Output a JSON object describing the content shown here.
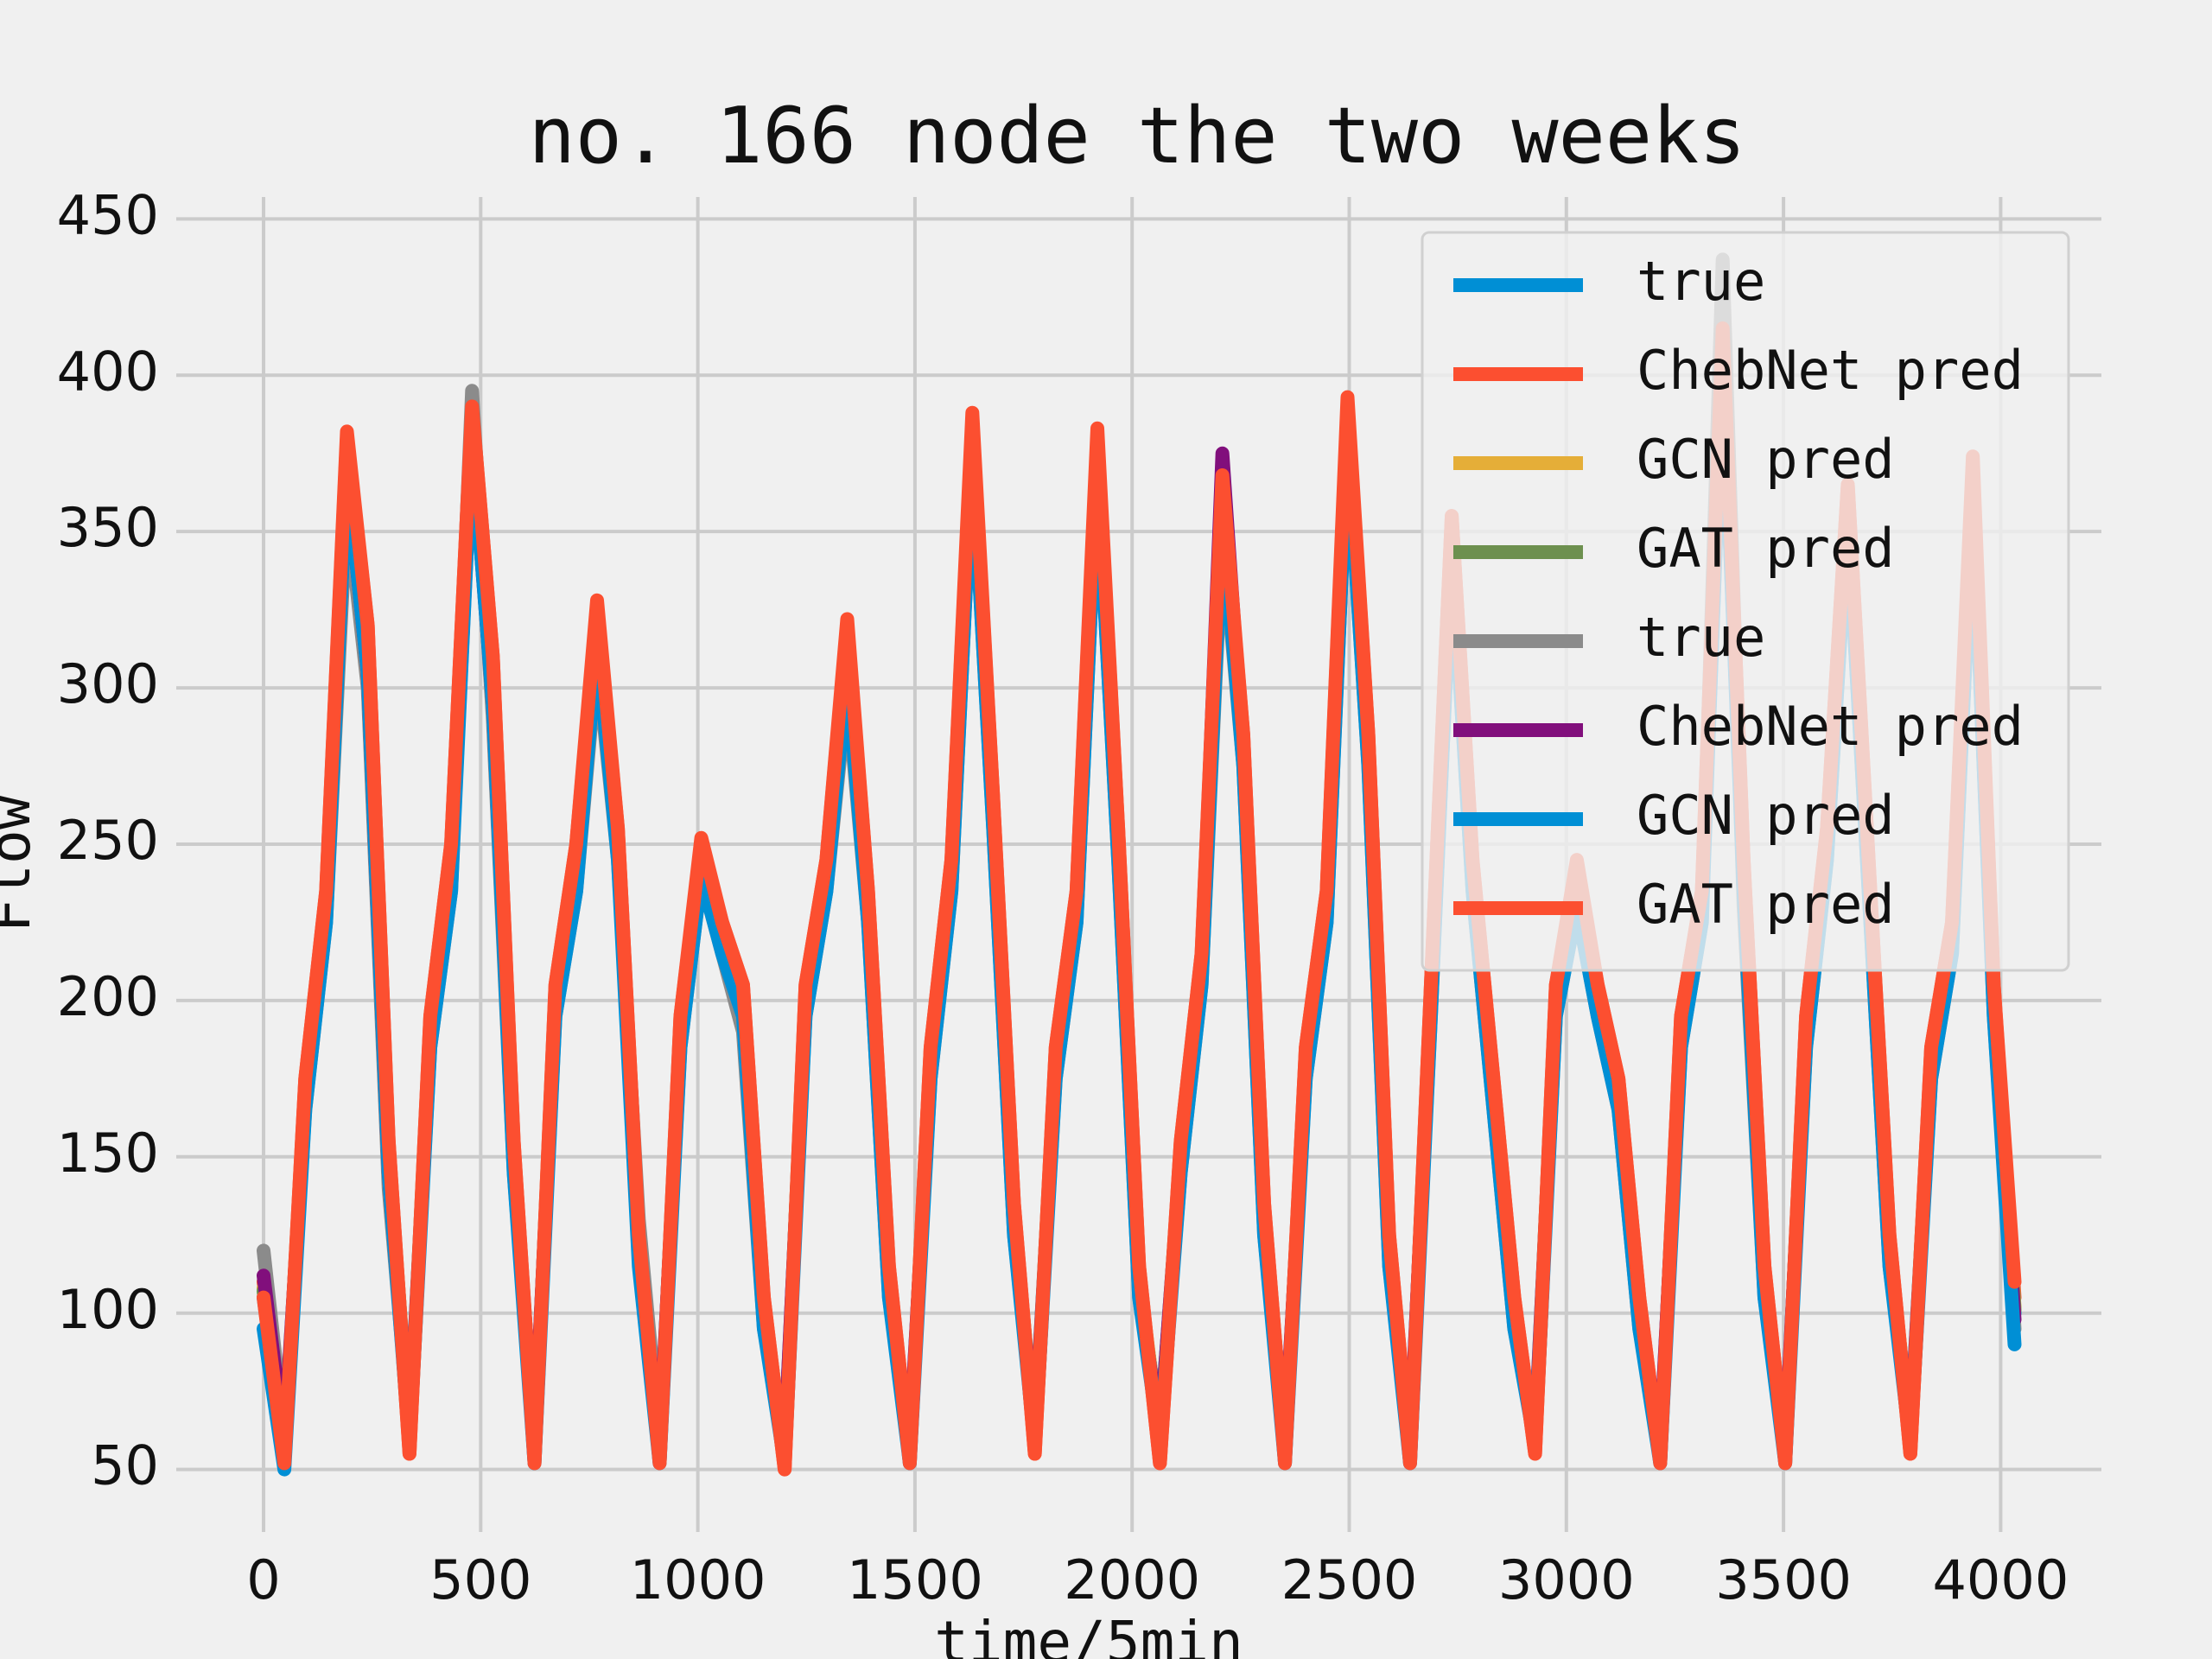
{
  "chart_data": {
    "type": "line",
    "title": "no. 166 node the two weeks",
    "xlabel": "time/5min",
    "ylabel": "Flow",
    "xlim": [
      -201,
      4232
    ],
    "ylim": [
      30,
      457
    ],
    "xticks": [
      0,
      500,
      1000,
      1500,
      2000,
      2500,
      3000,
      3500,
      4000
    ],
    "yticks": [
      50,
      100,
      150,
      200,
      250,
      300,
      350,
      400,
      450
    ],
    "grid": true,
    "legend": "upper right",
    "x": [
      0,
      48,
      96,
      144,
      192,
      240,
      288,
      336,
      384,
      432,
      480,
      528,
      576,
      624,
      672,
      720,
      768,
      816,
      864,
      912,
      960,
      1008,
      1056,
      1104,
      1152,
      1200,
      1248,
      1296,
      1344,
      1392,
      1440,
      1488,
      1536,
      1584,
      1632,
      1680,
      1728,
      1776,
      1824,
      1872,
      1920,
      1968,
      2016,
      2064,
      2112,
      2160,
      2208,
      2256,
      2304,
      2352,
      2400,
      2448,
      2496,
      2544,
      2592,
      2640,
      2688,
      2736,
      2784,
      2832,
      2880,
      2928,
      2976,
      3024,
      3072,
      3120,
      3168,
      3216,
      3264,
      3312,
      3360,
      3408,
      3456,
      3504,
      3552,
      3600,
      3648,
      3696,
      3744,
      3792,
      3840,
      3888,
      3936,
      3984,
      4032
    ],
    "series": [
      {
        "name": "true",
        "color": "#008fd5",
        "values": [
          105,
          55,
          170,
          230,
          375,
          310,
          150,
          60,
          190,
          240,
          385,
          300,
          150,
          55,
          200,
          240,
          320,
          250,
          120,
          55,
          190,
          245,
          220,
          200,
          100,
          55,
          200,
          240,
          310,
          230,
          110,
          55,
          180,
          240,
          380,
          260,
          130,
          60,
          180,
          230,
          375,
          250,
          110,
          60,
          150,
          210,
          360,
          280,
          130,
          55,
          180,
          230,
          385,
          280,
          120,
          55,
          200,
          350,
          240,
          170,
          100,
          60,
          200,
          235,
          200,
          170,
          100,
          55,
          190,
          230,
          410,
          240,
          110,
          55,
          190,
          250,
          360,
          240,
          120,
          60,
          180,
          220,
          365,
          200,
          100
        ]
      },
      {
        "name": "ChebNet pred",
        "color": "#fc4f30",
        "values": [
          110,
          52,
          175,
          235,
          380,
          320,
          155,
          55,
          195,
          250,
          390,
          310,
          155,
          52,
          205,
          250,
          325,
          255,
          125,
          52,
          195,
          250,
          225,
          205,
          105,
          50,
          205,
          245,
          320,
          235,
          115,
          52,
          185,
          245,
          385,
          265,
          135,
          55,
          185,
          235,
          380,
          255,
          115,
          52,
          155,
          215,
          365,
          285,
          135,
          52,
          185,
          235,
          390,
          285,
          125,
          52,
          205,
          355,
          245,
          175,
          105,
          55,
          205,
          240,
          205,
          175,
          105,
          52,
          195,
          235,
          415,
          245,
          115,
          52,
          195,
          255,
          365,
          245,
          125,
          55,
          185,
          225,
          370,
          205,
          105
        ]
      },
      {
        "name": "GCN pred",
        "color": "#e5ae38",
        "values": [
          108,
          54,
          172,
          232,
          378,
          315,
          152,
          58,
          192,
          245,
          388,
          305,
          152,
          54,
          202,
          245,
          322,
          252,
          122,
          54,
          192,
          248,
          222,
          202,
          102,
          54,
          202,
          242,
          315,
          232,
          112,
          54,
          182,
          242,
          382,
          262,
          132,
          58,
          182,
          232,
          378,
          252,
          112,
          58,
          152,
          212,
          362,
          282,
          132,
          54,
          182,
          232,
          388,
          282,
          122,
          54,
          202,
          352,
          242,
          172,
          102,
          58,
          202,
          238,
          202,
          172,
          102,
          54,
          192,
          232,
          412,
          242,
          112,
          54,
          192,
          252,
          362,
          242,
          122,
          58,
          182,
          222,
          368,
          202,
          102
        ]
      },
      {
        "name": "GAT pred",
        "color": "#6d904f",
        "values": [
          107,
          53,
          171,
          231,
          377,
          312,
          151,
          57,
          191,
          243,
          386,
          303,
          151,
          53,
          201,
          243,
          321,
          251,
          121,
          53,
          191,
          246,
          221,
          201,
          101,
          53,
          201,
          241,
          312,
          231,
          111,
          53,
          181,
          241,
          381,
          261,
          131,
          57,
          181,
          231,
          376,
          251,
          111,
          57,
          151,
          211,
          361,
          281,
          131,
          53,
          181,
          231,
          386,
          281,
          121,
          53,
          201,
          351,
          241,
          171,
          101,
          57,
          201,
          236,
          201,
          171,
          101,
          53,
          191,
          231,
          411,
          241,
          111,
          53,
          191,
          251,
          361,
          241,
          121,
          57,
          181,
          221,
          366,
          201,
          101
        ]
      },
      {
        "name": "true",
        "color": "#8b8b8b",
        "values": [
          120,
          60,
          165,
          225,
          360,
          300,
          140,
          62,
          185,
          235,
          395,
          290,
          145,
          58,
          195,
          235,
          310,
          245,
          130,
          58,
          185,
          240,
          215,
          190,
          95,
          58,
          195,
          235,
          300,
          225,
          105,
          58,
          175,
          235,
          375,
          255,
          125,
          62,
          175,
          225,
          370,
          245,
          105,
          62,
          145,
          205,
          350,
          275,
          125,
          58,
          175,
          225,
          380,
          275,
          115,
          58,
          195,
          345,
          235,
          165,
          95,
          62,
          195,
          230,
          195,
          165,
          95,
          58,
          185,
          225,
          437,
          230,
          105,
          58,
          185,
          245,
          355,
          235,
          115,
          62,
          175,
          215,
          360,
          195,
          95
        ]
      },
      {
        "name": "ChebNet pred",
        "color": "#810f7c",
        "values": [
          112,
          58,
          168,
          228,
          370,
          305,
          145,
          60,
          188,
          238,
          380,
          295,
          148,
          57,
          198,
          238,
          315,
          248,
          118,
          57,
          188,
          243,
          218,
          198,
          98,
          57,
          198,
          238,
          305,
          228,
          108,
          57,
          178,
          238,
          375,
          258,
          128,
          60,
          178,
          228,
          370,
          248,
          108,
          60,
          150,
          208,
          375,
          278,
          128,
          57,
          178,
          228,
          380,
          278,
          118,
          57,
          198,
          345,
          238,
          168,
          98,
          60,
          198,
          233,
          198,
          168,
          98,
          57,
          188,
          228,
          405,
          238,
          108,
          57,
          188,
          248,
          355,
          238,
          118,
          60,
          178,
          218,
          360,
          198,
          98
        ]
      },
      {
        "name": "GCN pred",
        "color": "#008fd5",
        "values": [
          95,
          50,
          165,
          225,
          370,
          305,
          145,
          58,
          185,
          235,
          380,
          295,
          145,
          52,
          195,
          235,
          315,
          245,
          115,
          52,
          185,
          240,
          215,
          195,
          95,
          52,
          195,
          235,
          305,
          225,
          105,
          52,
          175,
          235,
          375,
          255,
          125,
          58,
          175,
          225,
          370,
          245,
          105,
          58,
          145,
          205,
          355,
          275,
          125,
          52,
          175,
          225,
          380,
          275,
          115,
          52,
          195,
          345,
          235,
          165,
          95,
          58,
          195,
          230,
          195,
          165,
          95,
          52,
          185,
          225,
          405,
          235,
          105,
          52,
          185,
          245,
          355,
          235,
          115,
          58,
          175,
          215,
          360,
          195,
          90
        ]
      },
      {
        "name": "GAT pred",
        "color": "#fc4f30",
        "values": [
          105,
          52,
          175,
          235,
          382,
          320,
          155,
          55,
          195,
          250,
          390,
          310,
          155,
          52,
          205,
          250,
          328,
          255,
          125,
          52,
          195,
          252,
          225,
          205,
          105,
          50,
          205,
          245,
          322,
          235,
          115,
          52,
          185,
          245,
          388,
          265,
          135,
          55,
          185,
          235,
          383,
          255,
          115,
          52,
          155,
          215,
          368,
          285,
          135,
          52,
          185,
          235,
          393,
          285,
          125,
          52,
          205,
          355,
          245,
          175,
          105,
          55,
          205,
          245,
          205,
          175,
          105,
          52,
          195,
          235,
          415,
          245,
          115,
          52,
          195,
          255,
          365,
          245,
          125,
          55,
          185,
          225,
          374,
          205,
          110
        ]
      }
    ]
  }
}
